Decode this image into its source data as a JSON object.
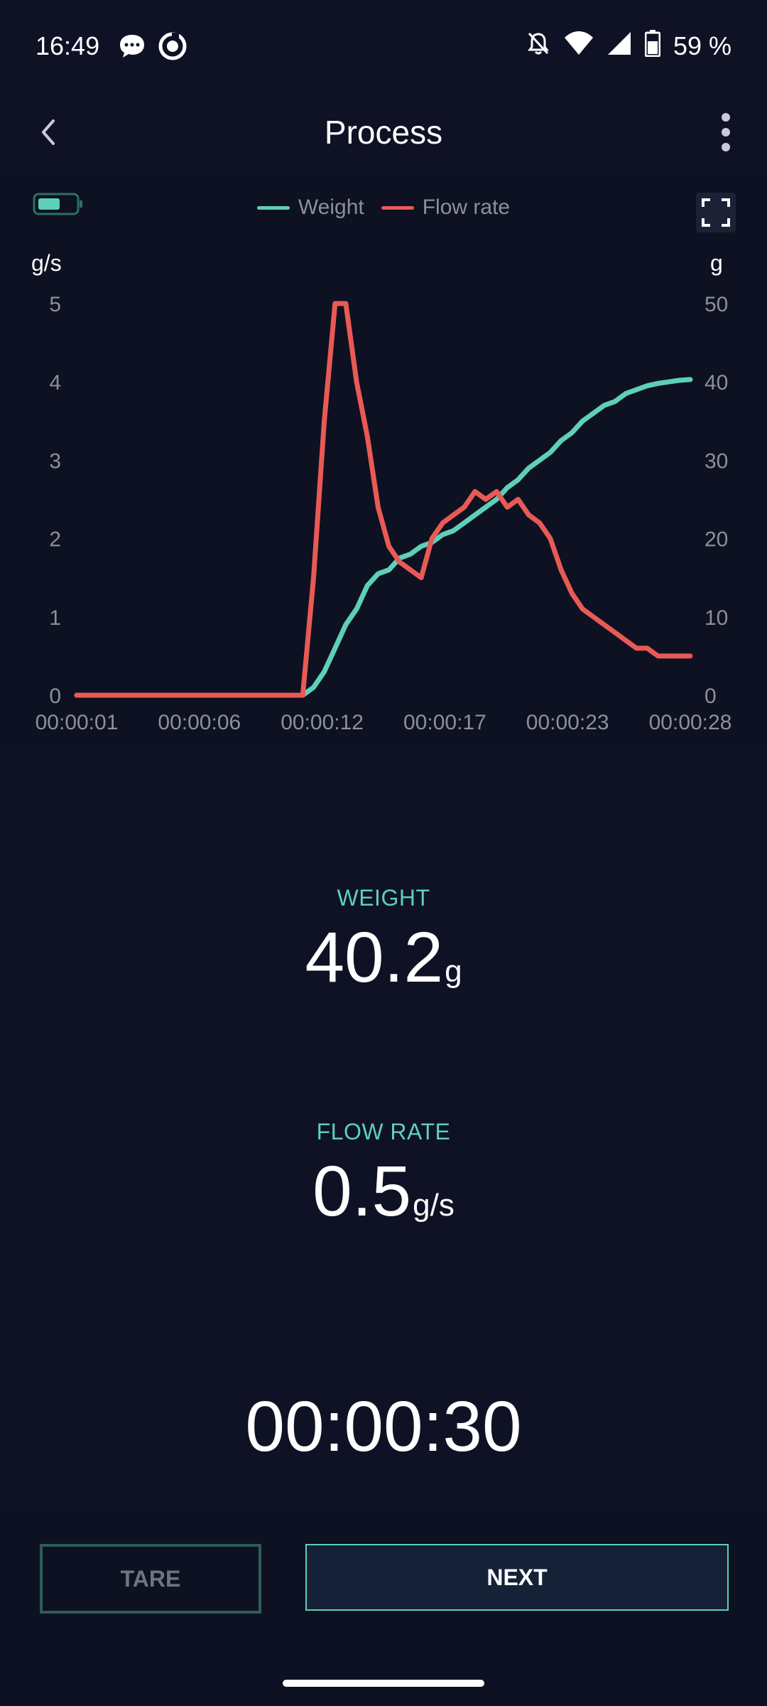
{
  "status_bar": {
    "time": "16:49",
    "battery_percent": "59 %",
    "icons": [
      "chat-notification-icon",
      "app-notification-icon",
      "bell-off-icon",
      "wifi-icon",
      "signal-icon",
      "battery-icon"
    ]
  },
  "header": {
    "title": "Process",
    "back_icon": "chevron-left-icon",
    "menu_icon": "more-vertical-icon"
  },
  "chart_panel": {
    "scale_battery_icon": "scale-battery-icon",
    "expand_icon": "fullscreen-icon"
  },
  "colors": {
    "weight": "#5ecfb8",
    "flow_rate": "#e85a55",
    "background": "#0f1225"
  },
  "chart_data": {
    "type": "line",
    "title": "",
    "legend": [
      "Weight",
      "Flow rate"
    ],
    "legend_position": "top-center",
    "y_left_label": "g/s",
    "y_right_label": "g",
    "y_left_range": [
      0,
      5
    ],
    "y_right_range": [
      0,
      50
    ],
    "y_left_ticks": [
      "0",
      "1",
      "2",
      "3",
      "4",
      "5"
    ],
    "y_right_ticks": [
      "0",
      "10",
      "20",
      "30",
      "40",
      "50"
    ],
    "x_tick_labels": [
      "00:00:01",
      "00:00:06",
      "00:00:12",
      "00:00:17",
      "00:00:23",
      "00:00:28"
    ],
    "x_range": [
      1,
      29.5
    ],
    "grid": false,
    "series": [
      {
        "name": "Weight",
        "axis": "right",
        "x": [
          1,
          6,
          11.5,
          12.0,
          12.5,
          13.0,
          13.5,
          14.0,
          14.5,
          15.0,
          15.5,
          16.0,
          16.5,
          17.0,
          17.5,
          18.0,
          18.5,
          19.0,
          19.5,
          20.0,
          20.5,
          21.0,
          21.5,
          22.0,
          22.5,
          23.0,
          23.5,
          24.0,
          24.5,
          25.0,
          25.5,
          26.0,
          26.5,
          27.0,
          27.5,
          28.0,
          28.5,
          29.0,
          29.5
        ],
        "values": [
          0,
          0,
          0,
          1,
          3,
          6,
          9,
          11,
          14,
          15.5,
          16,
          17.5,
          18,
          19,
          19.5,
          20.5,
          21,
          22,
          23,
          24,
          25,
          26.5,
          27.5,
          29,
          30,
          31,
          32.5,
          33.5,
          35,
          36,
          37,
          37.5,
          38.5,
          39,
          39.5,
          39.8,
          40,
          40.2,
          40.3
        ]
      },
      {
        "name": "Flow rate",
        "axis": "left",
        "x": [
          1,
          6,
          11.5,
          12.0,
          12.5,
          13.0,
          13.5,
          14.0,
          14.5,
          15.0,
          15.5,
          16.0,
          16.5,
          17.0,
          17.5,
          18.0,
          18.5,
          19.0,
          19.5,
          20.0,
          20.5,
          21.0,
          21.5,
          22.0,
          22.5,
          23.0,
          23.5,
          24.0,
          24.5,
          25.0,
          25.5,
          26.0,
          26.5,
          27.0,
          27.5,
          28.0,
          28.5,
          29.0,
          29.5
        ],
        "values": [
          0,
          0,
          0,
          1.5,
          3.5,
          5,
          5,
          4,
          3.3,
          2.4,
          1.9,
          1.7,
          1.6,
          1.5,
          2.0,
          2.2,
          2.3,
          2.4,
          2.6,
          2.5,
          2.6,
          2.4,
          2.5,
          2.3,
          2.2,
          2.0,
          1.6,
          1.3,
          1.1,
          1.0,
          0.9,
          0.8,
          0.7,
          0.6,
          0.6,
          0.5,
          0.5,
          0.5,
          0.5
        ]
      }
    ]
  },
  "metrics": {
    "weight_label": "WEIGHT",
    "weight_value": "40.2",
    "weight_unit": "g",
    "flow_label": "FLOW RATE",
    "flow_value": "0.5",
    "flow_unit": "g/s",
    "timer": "00:00:30"
  },
  "actions": {
    "tare_label": "TARE",
    "next_label": "NEXT"
  }
}
